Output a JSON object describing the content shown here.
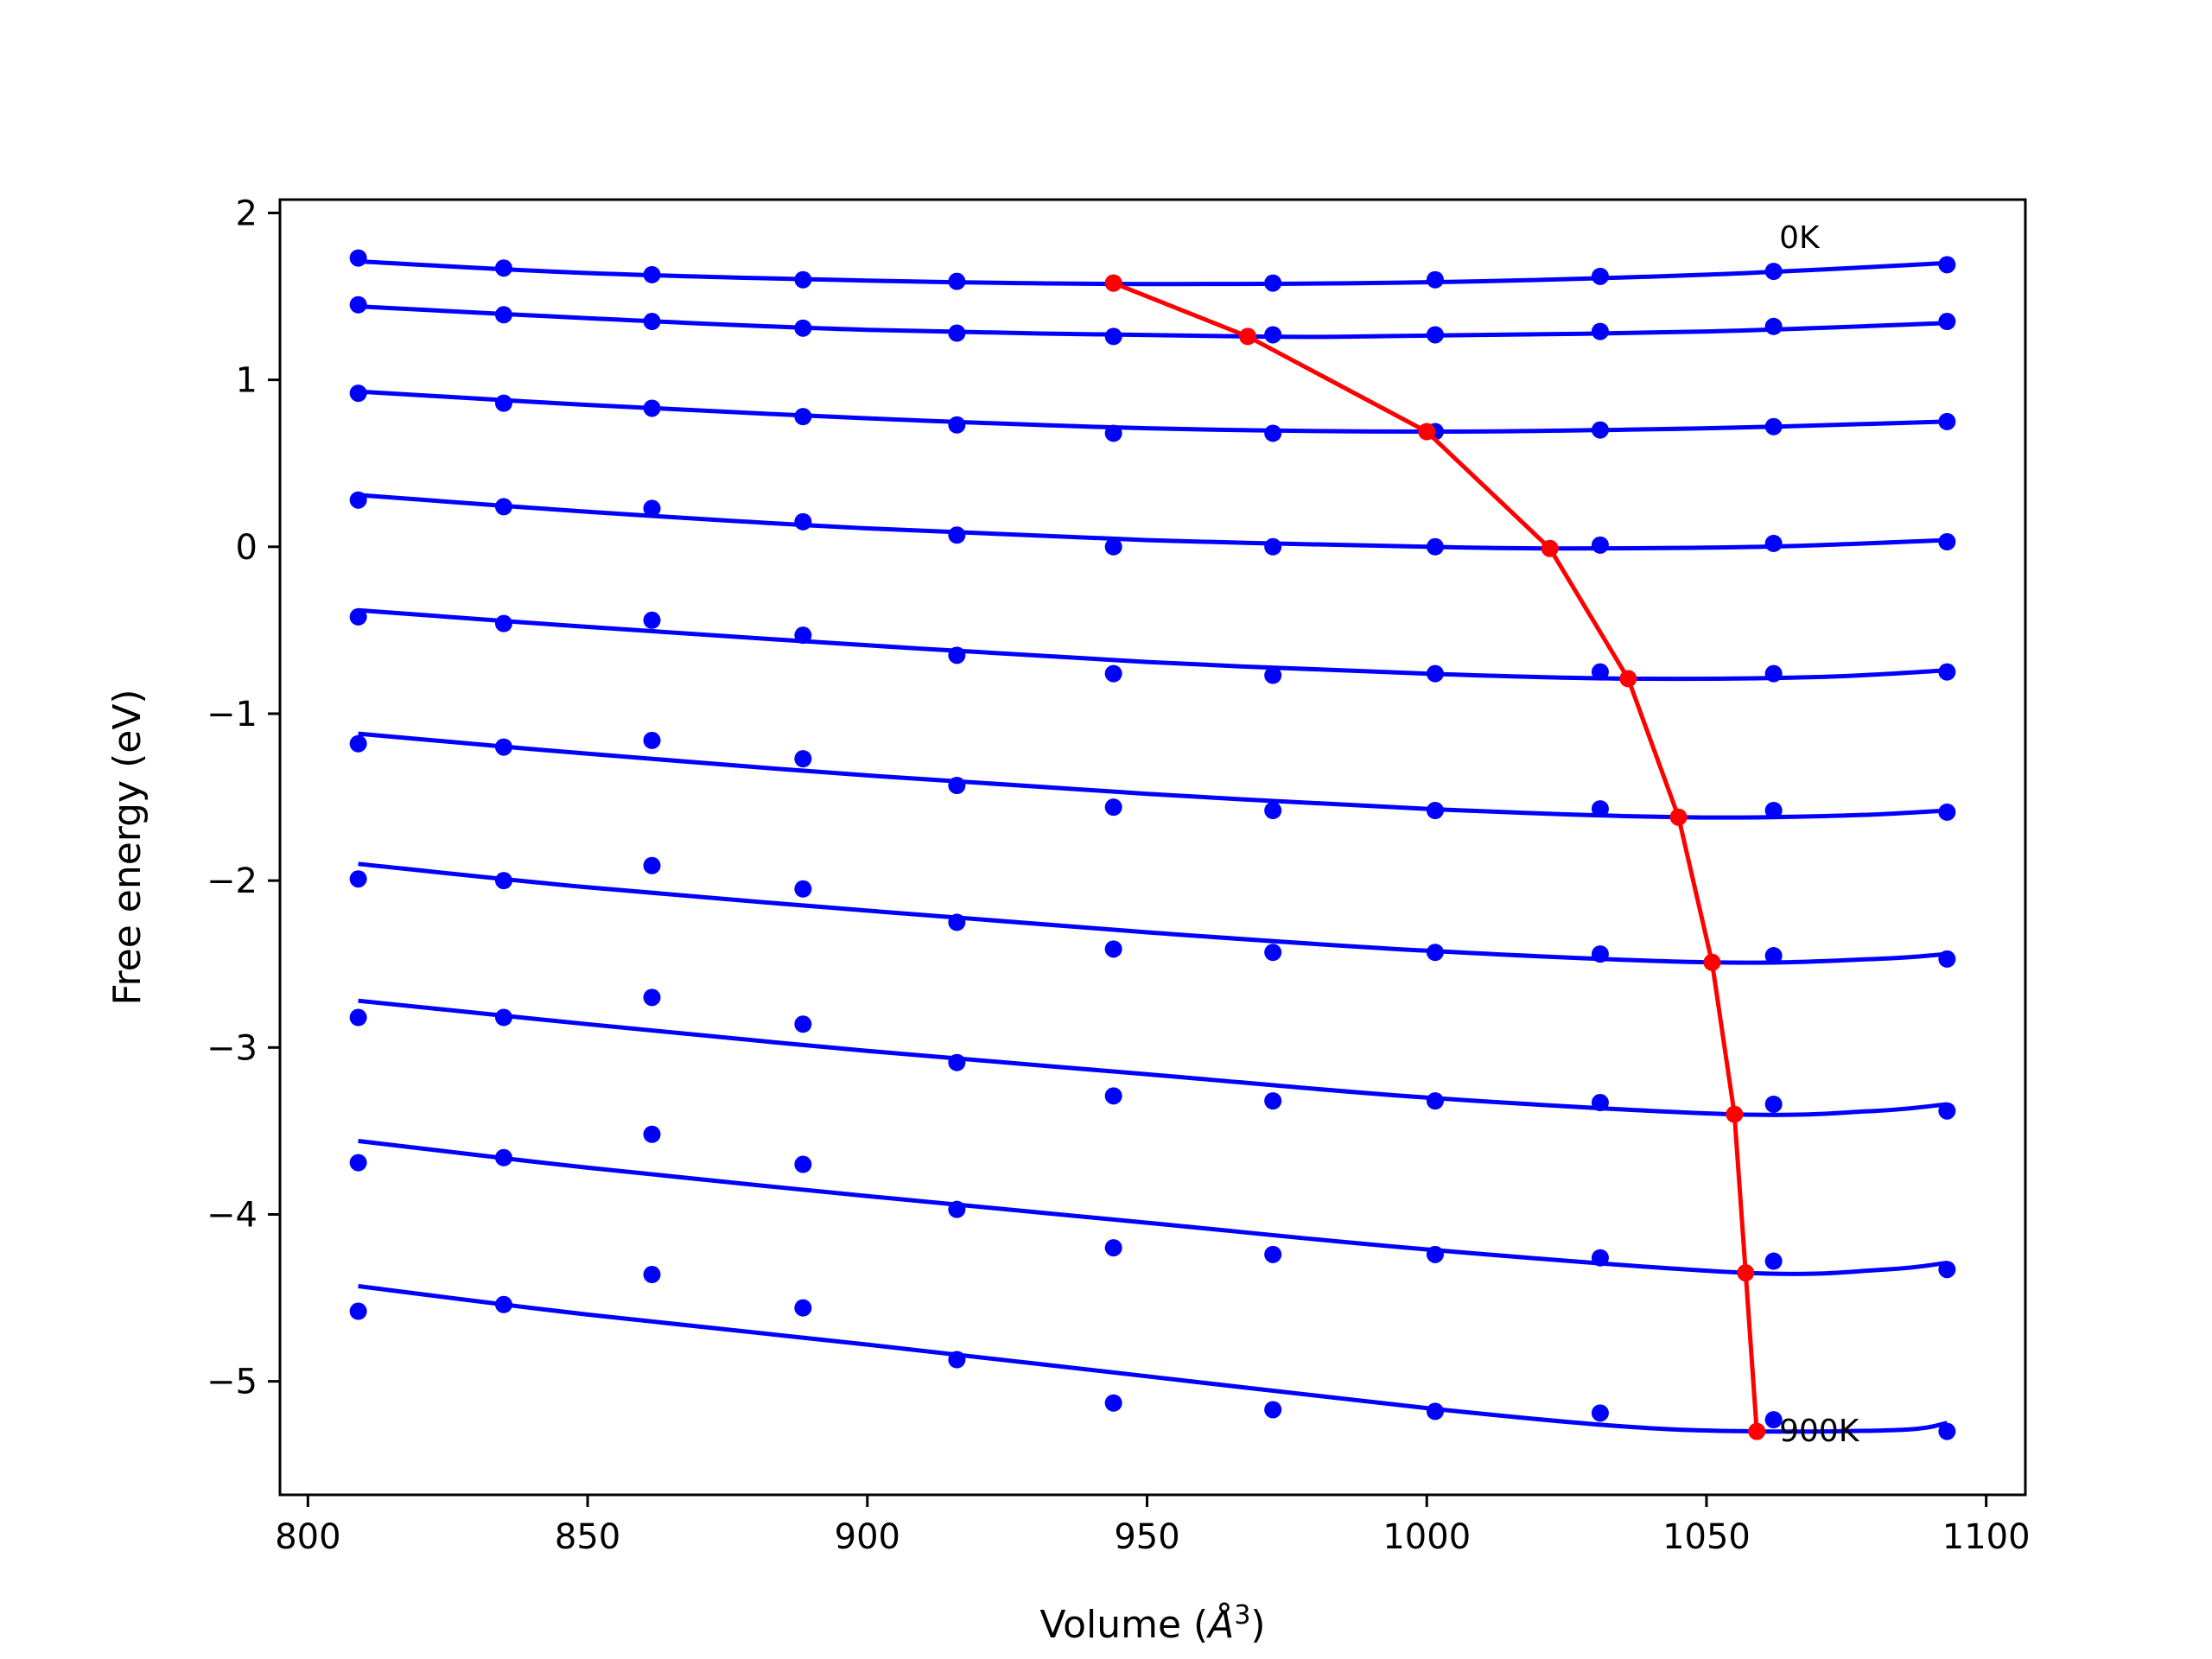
{
  "chart_data": {
    "type": "line",
    "title": "",
    "xlabel": "Volume (",
    "xlabel_symbol": "Å",
    "xlabel_exp": "3",
    "xlabel_close": ")",
    "ylabel": "Free energy (eV)",
    "xlim": [
      795,
      1107
    ],
    "ylim": [
      -5.68,
      2.08
    ],
    "xticks": [
      800,
      850,
      900,
      950,
      1000,
      1050,
      1100
    ],
    "yticks": [
      2,
      1,
      0,
      -1,
      -2,
      -3,
      -4,
      -5
    ],
    "ytick_labels": [
      "2",
      "1",
      "0",
      "−1",
      "−2",
      "−3",
      "−4",
      "−5"
    ],
    "grid": false,
    "colors": {
      "fit": "#0000ff",
      "data": "#0000ff",
      "minimum": "#ff0000"
    },
    "x": [
      809,
      835,
      861.5,
      888.5,
      916,
      944,
      972.5,
      1001.5,
      1031,
      1062,
      1093
    ],
    "series": [
      {
        "values": [
          1.73,
          1.67,
          1.63,
          1.6,
          1.59,
          1.58,
          1.58,
          1.6,
          1.62,
          1.65,
          1.69
        ],
        "fit": [
          [
            809,
            1.71
          ],
          [
            850,
            1.64
          ],
          [
            900,
            1.595
          ],
          [
            945,
            1.575
          ],
          [
            1000,
            1.585
          ],
          [
            1050,
            1.63
          ],
          [
            1093,
            1.7
          ]
        ]
      },
      {
        "values": [
          1.45,
          1.39,
          1.35,
          1.31,
          1.28,
          1.26,
          1.27,
          1.27,
          1.29,
          1.32,
          1.35
        ],
        "fit": [
          [
            809,
            1.44
          ],
          [
            850,
            1.37
          ],
          [
            900,
            1.3
          ],
          [
            968,
            1.26
          ],
          [
            1000,
            1.265
          ],
          [
            1050,
            1.29
          ],
          [
            1093,
            1.34
          ]
        ]
      },
      {
        "values": [
          0.92,
          0.86,
          0.83,
          0.78,
          0.73,
          0.68,
          0.68,
          0.69,
          0.7,
          0.72,
          0.75
        ],
        "fit": [
          [
            809,
            0.93
          ],
          [
            850,
            0.85
          ],
          [
            900,
            0.77
          ],
          [
            950,
            0.71
          ],
          [
            1000,
            0.69
          ],
          [
            1050,
            0.71
          ],
          [
            1093,
            0.75
          ]
        ]
      },
      {
        "values": [
          0.28,
          0.24,
          0.23,
          0.15,
          0.07,
          0.0,
          0.0,
          0.0,
          0.01,
          0.02,
          0.03
        ],
        "fit": [
          [
            809,
            0.31
          ],
          [
            850,
            0.21
          ],
          [
            900,
            0.11
          ],
          [
            950,
            0.04
          ],
          [
            1000,
            0.0
          ],
          [
            1022,
            -0.01
          ],
          [
            1060,
            0.0
          ],
          [
            1093,
            0.04
          ]
        ]
      },
      {
        "values": [
          -0.42,
          -0.46,
          -0.44,
          -0.53,
          -0.65,
          -0.76,
          -0.77,
          -0.76,
          -0.75,
          -0.76,
          -0.75
        ],
        "fit": [
          [
            809,
            -0.38
          ],
          [
            850,
            -0.48
          ],
          [
            900,
            -0.59
          ],
          [
            950,
            -0.69
          ],
          [
            1000,
            -0.76
          ],
          [
            1036,
            -0.79
          ],
          [
            1070,
            -0.78
          ],
          [
            1093,
            -0.74
          ]
        ]
      },
      {
        "values": [
          -1.18,
          -1.2,
          -1.16,
          -1.27,
          -1.43,
          -1.56,
          -1.58,
          -1.58,
          -1.57,
          -1.58,
          -1.59
        ],
        "fit": [
          [
            809,
            -1.12
          ],
          [
            850,
            -1.24
          ],
          [
            900,
            -1.37
          ],
          [
            950,
            -1.48
          ],
          [
            1000,
            -1.57
          ],
          [
            1045,
            -1.62
          ],
          [
            1075,
            -1.61
          ],
          [
            1093,
            -1.58
          ]
        ]
      },
      {
        "values": [
          -1.99,
          -2.0,
          -1.91,
          -2.05,
          -2.25,
          -2.41,
          -2.43,
          -2.43,
          -2.44,
          -2.45,
          -2.47
        ],
        "fit": [
          [
            809,
            -1.9
          ],
          [
            850,
            -2.04
          ],
          [
            900,
            -2.18
          ],
          [
            950,
            -2.31
          ],
          [
            1000,
            -2.42
          ],
          [
            1051,
            -2.49
          ],
          [
            1080,
            -2.47
          ],
          [
            1093,
            -2.44
          ]
        ]
      },
      {
        "values": [
          -2.82,
          -2.82,
          -2.7,
          -2.86,
          -3.09,
          -3.29,
          -3.32,
          -3.32,
          -3.33,
          -3.34,
          -3.38
        ],
        "fit": [
          [
            809,
            -2.72
          ],
          [
            850,
            -2.86
          ],
          [
            900,
            -3.02
          ],
          [
            950,
            -3.16
          ],
          [
            1000,
            -3.3
          ],
          [
            1055,
            -3.4
          ],
          [
            1080,
            -3.38
          ],
          [
            1093,
            -3.34
          ]
        ]
      },
      {
        "values": [
          -3.69,
          -3.66,
          -3.52,
          -3.7,
          -3.97,
          -4.2,
          -4.24,
          -4.24,
          -4.26,
          -4.28,
          -4.33
        ],
        "fit": [
          [
            809,
            -3.56
          ],
          [
            850,
            -3.72
          ],
          [
            900,
            -3.89
          ],
          [
            950,
            -4.05
          ],
          [
            1000,
            -4.21
          ],
          [
            1057,
            -4.35
          ],
          [
            1082,
            -4.33
          ],
          [
            1093,
            -4.29
          ]
        ]
      },
      {
        "values": [
          -4.58,
          -4.54,
          -4.36,
          -4.56,
          -4.87,
          -5.13,
          -5.17,
          -5.18,
          -5.19,
          -5.23,
          -5.3
        ],
        "fit": [
          [
            809,
            -4.43
          ],
          [
            850,
            -4.6
          ],
          [
            900,
            -4.78
          ],
          [
            950,
            -4.97
          ],
          [
            1000,
            -5.16
          ],
          [
            1035,
            -5.27
          ],
          [
            1059,
            -5.3
          ],
          [
            1085,
            -5.29
          ],
          [
            1093,
            -5.25
          ]
        ]
      }
    ],
    "minimum_curve": {
      "x": [
        944,
        968,
        1000,
        1022,
        1036,
        1045,
        1051,
        1055,
        1057,
        1059
      ],
      "y": [
        1.58,
        1.26,
        0.69,
        -0.01,
        -0.79,
        -1.62,
        -2.49,
        -3.4,
        -4.35,
        -5.3
      ]
    },
    "annotations": [
      {
        "text": "0K",
        "x": 1063,
        "y": 1.79
      },
      {
        "text": "900K",
        "x": 1063,
        "y": -5.36
      }
    ]
  }
}
